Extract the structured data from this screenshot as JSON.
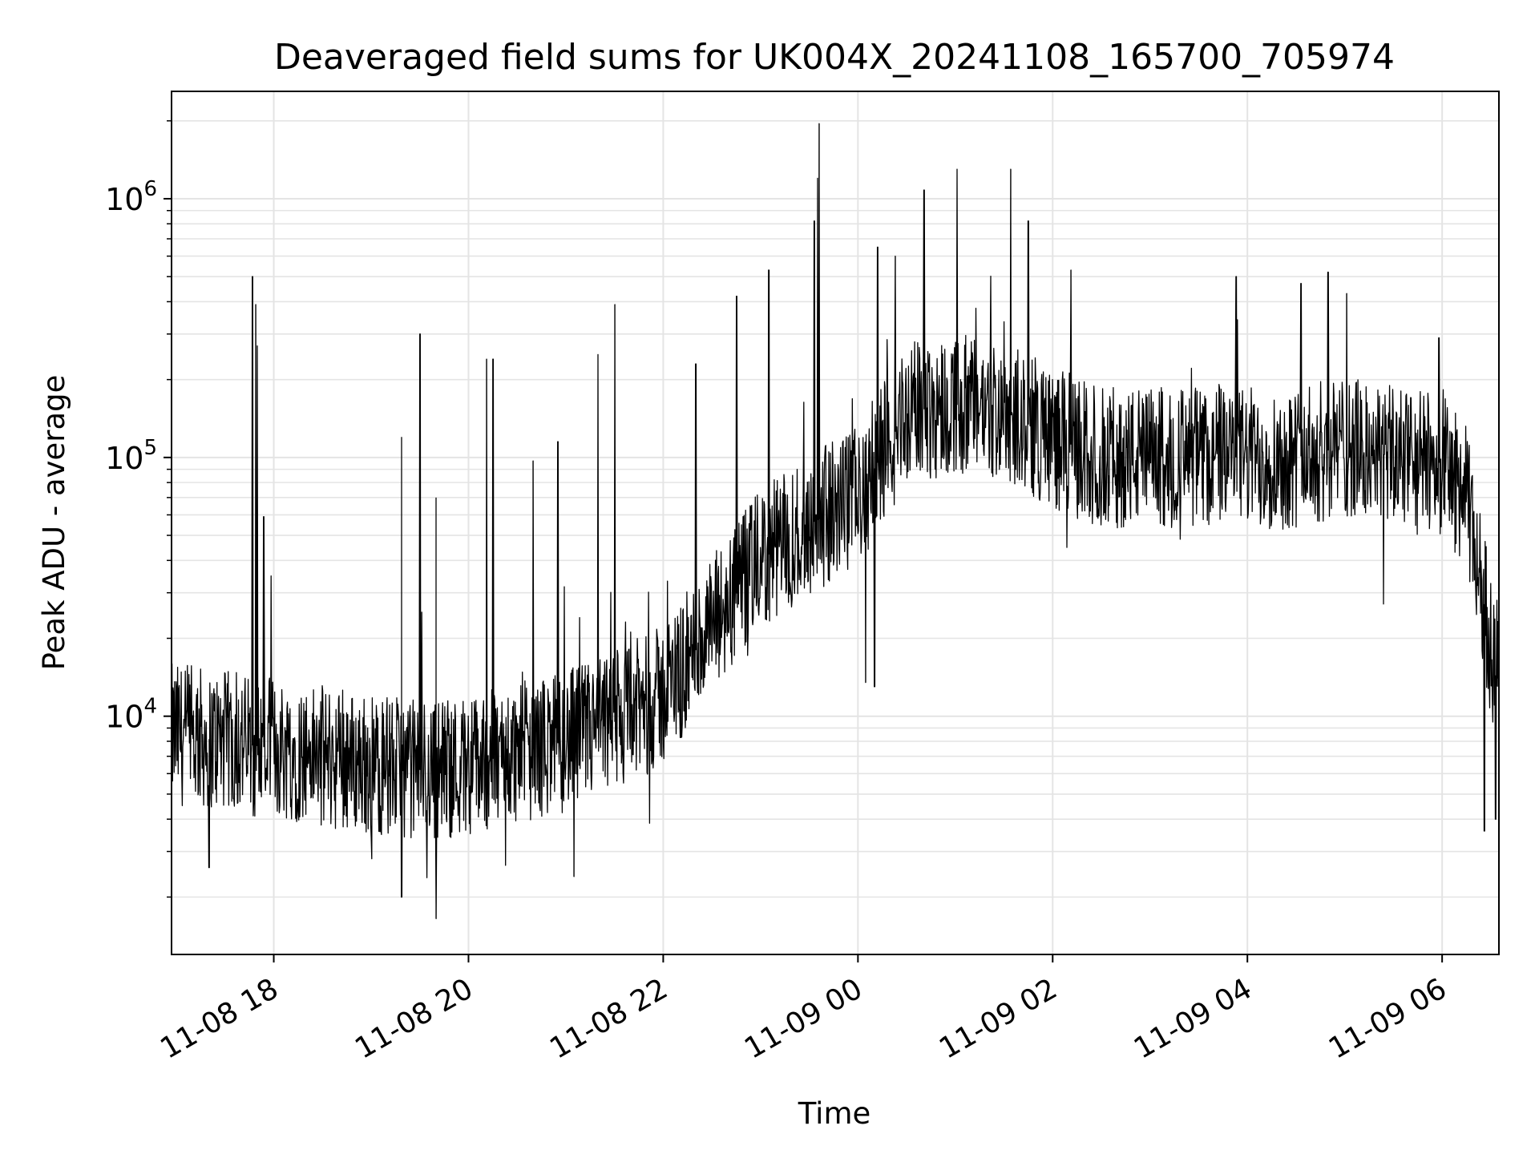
{
  "chart_data": {
    "type": "line",
    "title": "Deaveraged field sums for UK004X_20241108_165700_705974",
    "xlabel": "Time",
    "ylabel": "Peak ADU - average",
    "x_range": [
      "2024-11-08 16:57",
      "2024-11-09 06:35"
    ],
    "yscale": "log",
    "ylim": [
      1200,
      2600000
    ],
    "grid": {
      "major": true,
      "minor_y": true
    },
    "legend": "none",
    "line_color": "#000000",
    "x_ticks": [
      {
        "value": "2024-11-08 18:00",
        "label": "11-08 18"
      },
      {
        "value": "2024-11-08 20:00",
        "label": "11-08 20"
      },
      {
        "value": "2024-11-08 22:00",
        "label": "11-08 22"
      },
      {
        "value": "2024-11-09 00:00",
        "label": "11-09 00"
      },
      {
        "value": "2024-11-09 02:00",
        "label": "11-09 02"
      },
      {
        "value": "2024-11-09 04:00",
        "label": "11-09 04"
      },
      {
        "value": "2024-11-09 06:00",
        "label": "11-09 06"
      }
    ],
    "y_ticks": [
      {
        "value": 10000,
        "base": "10",
        "exp": "4"
      },
      {
        "value": 100000,
        "base": "10",
        "exp": "5"
      },
      {
        "value": 1000000,
        "base": "10",
        "exp": "6"
      }
    ],
    "series": [
      {
        "x": [
          "2024-11-08 17:00",
          "2024-11-08 17:30",
          "2024-11-08 18:00",
          "2024-11-08 18:30",
          "2024-11-08 19:00",
          "2024-11-08 19:30",
          "2024-11-08 20:00",
          "2024-11-08 20:30",
          "2024-11-08 21:00",
          "2024-11-08 21:30",
          "2024-11-08 22:00",
          "2024-11-08 22:30",
          "2024-11-08 23:00",
          "2024-11-08 23:30",
          "2024-11-09 00:00",
          "2024-11-09 00:30",
          "2024-11-09 01:00",
          "2024-11-09 01:30",
          "2024-11-09 02:00",
          "2024-11-09 02:30",
          "2024-11-09 03:00",
          "2024-11-09 03:30",
          "2024-11-09 04:00",
          "2024-11-09 04:30",
          "2024-11-09 05:00",
          "2024-11-09 05:30",
          "2024-11-09 06:00",
          "2024-11-09 06:15",
          "2024-11-09 06:25",
          "2024-11-09 06:35"
        ],
        "y": [
          8500,
          8000,
          7500,
          7000,
          6500,
          6200,
          6500,
          7200,
          8000,
          9500,
          12000,
          22000,
          40000,
          55000,
          70000,
          150000,
          160000,
          150000,
          120000,
          100000,
          100000,
          100000,
          100000,
          100000,
          110000,
          100000,
          95000,
          70000,
          30000,
          12000
        ]
      }
    ],
    "spikes": [
      {
        "x": "2024-11-08 17:47",
        "y": 500000
      },
      {
        "x": "2024-11-08 17:49",
        "y": 390000
      },
      {
        "x": "2024-11-08 17:50",
        "y": 270000
      },
      {
        "x": "2024-11-08 17:54",
        "y": 59000
      },
      {
        "x": "2024-11-08 19:19",
        "y": 120000
      },
      {
        "x": "2024-11-08 19:30",
        "y": 300000
      },
      {
        "x": "2024-11-08 19:40",
        "y": 70000
      },
      {
        "x": "2024-11-08 20:11",
        "y": 240000
      },
      {
        "x": "2024-11-08 20:15",
        "y": 240000
      },
      {
        "x": "2024-11-08 20:40",
        "y": 97000
      },
      {
        "x": "2024-11-08 20:55",
        "y": 115000
      },
      {
        "x": "2024-11-08 21:20",
        "y": 250000
      },
      {
        "x": "2024-11-08 21:30",
        "y": 390000
      },
      {
        "x": "2024-11-08 22:20",
        "y": 230000
      },
      {
        "x": "2024-11-08 22:45",
        "y": 420000
      },
      {
        "x": "2024-11-08 23:05",
        "y": 530000
      },
      {
        "x": "2024-11-08 23:33",
        "y": 820000
      },
      {
        "x": "2024-11-08 23:35",
        "y": 1200000
      },
      {
        "x": "2024-11-08 23:36",
        "y": 1950000
      },
      {
        "x": "2024-11-09 00:12",
        "y": 650000
      },
      {
        "x": "2024-11-09 00:23",
        "y": 600000
      },
      {
        "x": "2024-11-09 00:41",
        "y": 1080000
      },
      {
        "x": "2024-11-09 01:01",
        "y": 1300000
      },
      {
        "x": "2024-11-09 01:34",
        "y": 1300000
      },
      {
        "x": "2024-11-09 01:45",
        "y": 820000
      },
      {
        "x": "2024-11-09 02:11",
        "y": 530000
      },
      {
        "x": "2024-11-09 03:53",
        "y": 500000
      },
      {
        "x": "2024-11-09 04:33",
        "y": 470000
      },
      {
        "x": "2024-11-09 04:50",
        "y": 520000
      },
      {
        "x": "2024-11-09 05:01",
        "y": 430000
      },
      {
        "x": "2024-11-09 05:58",
        "y": 290000
      }
    ],
    "dips": [
      {
        "x": "2024-11-08 17:20",
        "y": 2600
      },
      {
        "x": "2024-11-08 19:19",
        "y": 2000
      },
      {
        "x": "2024-11-08 19:40",
        "y": 1650
      },
      {
        "x": "2024-11-08 21:05",
        "y": 2400
      },
      {
        "x": "2024-11-09 00:05",
        "y": 13500
      },
      {
        "x": "2024-11-09 00:10",
        "y": 13000
      },
      {
        "x": "2024-11-09 06:26",
        "y": 3600
      },
      {
        "x": "2024-11-09 06:33",
        "y": 4000
      }
    ]
  }
}
